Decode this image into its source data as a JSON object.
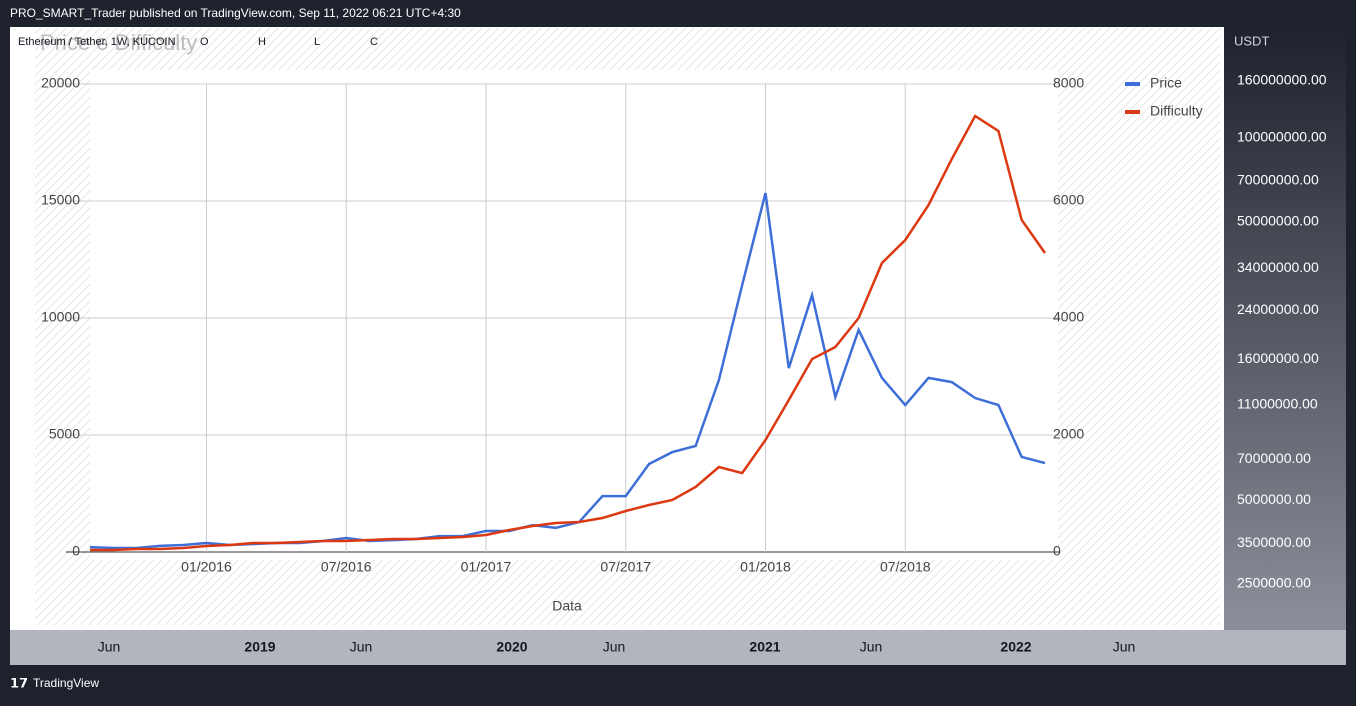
{
  "header": {
    "publish": "PRO_SMART_Trader published on TradingView.com, Sep 11, 2022 06:21 UTC+4:30"
  },
  "symbol": {
    "name": "Ethereum / Tether, 1W, KUCOIN",
    "ohlc": [
      "O",
      "H",
      "L",
      "C"
    ]
  },
  "price_scale": {
    "currency": "USDT",
    "labels": [
      "160000000.00",
      "100000000.00",
      "70000000.00",
      "50000000.00",
      "34000000.00",
      "24000000.00",
      "16000000.00",
      "11000000.00",
      "7000000.00",
      "5000000.00",
      "3500000.00",
      "2500000.00"
    ]
  },
  "time_scale": {
    "labels": [
      {
        "text": "Jun",
        "bold": false
      },
      {
        "text": "2019",
        "bold": true
      },
      {
        "text": "Jun",
        "bold": false
      },
      {
        "text": "2020",
        "bold": true
      },
      {
        "text": "Jun",
        "bold": false
      },
      {
        "text": "2021",
        "bold": true
      },
      {
        "text": "Jun",
        "bold": false
      },
      {
        "text": "2022",
        "bold": true
      },
      {
        "text": "Jun",
        "bold": false
      }
    ]
  },
  "footer": {
    "brand": "TradingView"
  },
  "chart_data": {
    "type": "line",
    "title": "Price e Difficulty",
    "xlabel": "Data",
    "categories": [
      null,
      null,
      null,
      null,
      null,
      "01/2016",
      null,
      null,
      null,
      null,
      null,
      "07/2016",
      null,
      null,
      null,
      null,
      null,
      "01/2017",
      null,
      null,
      null,
      null,
      null,
      "07/2017",
      null,
      null,
      null,
      null,
      null,
      "01/2018",
      null,
      null,
      null,
      null,
      null,
      "07/2018",
      null,
      null,
      null,
      null,
      null,
      null
    ],
    "series": [
      {
        "name": "Price",
        "color": "#3e6fd8",
        "values": [
          210,
          170,
          170,
          260,
          300,
          385,
          300,
          340,
          385,
          385,
          470,
          600,
          470,
          510,
          555,
          680,
          680,
          900,
          900,
          1150,
          1030,
          1280,
          2390,
          2390,
          3760,
          4270,
          4530,
          7350,
          11410,
          15340,
          7860,
          10980,
          6620,
          9490,
          7440,
          6280,
          7440,
          7260,
          6580,
          6280,
          4060,
          3800
        ]
      },
      {
        "name": "Difficulty",
        "color": "#dc3912",
        "axis": "y2",
        "values": [
          34,
          34,
          51,
          51,
          68,
          103,
          120,
          154,
          154,
          171,
          188,
          188,
          205,
          222,
          222,
          239,
          256,
          291,
          376,
          444,
          496,
          513,
          581,
          701,
          803,
          889,
          1111,
          1453,
          1350,
          1915,
          2598,
          3299,
          3504,
          4000,
          4940,
          5333,
          5932,
          6718,
          7453,
          7197,
          5675,
          5111
        ]
      }
    ],
    "ylim": [
      0,
      20000
    ],
    "yticks": [
      0,
      5000,
      10000,
      15000,
      20000
    ],
    "y2lim": [
      0,
      8000
    ],
    "y2ticks": [
      0,
      2000,
      4000,
      6000,
      8000
    ],
    "grid": true,
    "legend": "right"
  }
}
